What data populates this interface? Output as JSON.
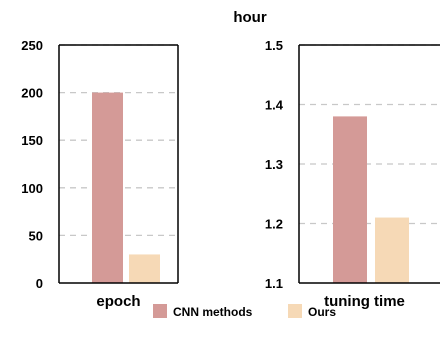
{
  "chart_data": [
    {
      "type": "bar",
      "xlabel": "epoch",
      "ylabel": "",
      "categories": [
        ""
      ],
      "series": [
        {
          "name": "CNN methods",
          "values": [
            200
          ]
        },
        {
          "name": "Ours",
          "values": [
            30
          ]
        }
      ],
      "ylim": [
        0,
        250
      ],
      "yticks": [
        0,
        50,
        100,
        150,
        200,
        250
      ],
      "grid": "horizontal dashed"
    },
    {
      "type": "bar",
      "xlabel": "tuning time",
      "ylabel": "hour",
      "categories": [
        ""
      ],
      "series": [
        {
          "name": "CNN methods",
          "values": [
            1.38
          ]
        },
        {
          "name": "Ours",
          "values": [
            1.21
          ]
        }
      ],
      "ylim": [
        1.1,
        1.5
      ],
      "yticks": [
        1.1,
        1.2,
        1.3,
        1.4,
        1.5
      ],
      "grid": "horizontal dashed"
    }
  ],
  "legend": {
    "placement": "bottom-center",
    "items": [
      {
        "label": "CNN methods",
        "color": "#d49a97"
      },
      {
        "label": "Ours",
        "color": "#f6d9b6"
      }
    ]
  },
  "colors": {
    "series": [
      "#d49a97",
      "#f6d9b6"
    ],
    "grid": "#c8c8c8",
    "axis": "#000000"
  }
}
